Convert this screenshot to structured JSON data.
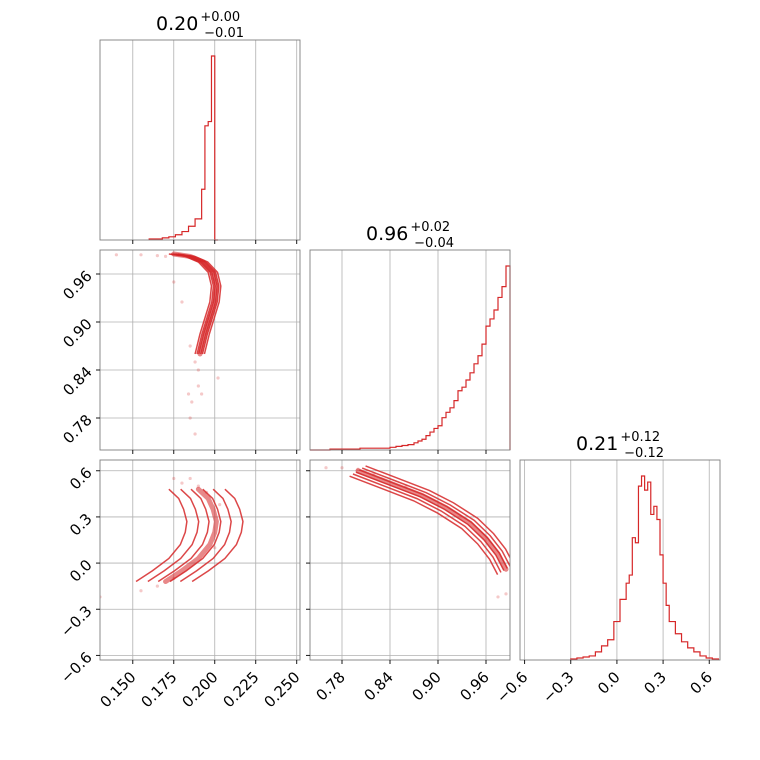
{
  "colors": {
    "accent": "#d62728",
    "grid": "#b0b0b0",
    "frame": "#7f7f7f"
  },
  "chart_data": {
    "type": "corner",
    "grid": true,
    "parameters": [
      {
        "title": {
          "value": "0.20",
          "plus": "+0.00",
          "minus": "−0.01"
        },
        "range": [
          0.13,
          0.252
        ],
        "ticks": [
          {
            "v": 0.15,
            "label": "0.150"
          },
          {
            "v": 0.175,
            "label": "0.175"
          },
          {
            "v": 0.2,
            "label": "0.200"
          },
          {
            "v": 0.225,
            "label": "0.225"
          },
          {
            "v": 0.25,
            "label": "0.250"
          }
        ],
        "histogram": {
          "bin_edges": [
            0.16,
            0.164,
            0.168,
            0.172,
            0.176,
            0.18,
            0.184,
            0.188,
            0.192,
            0.194,
            0.196,
            0.198,
            0.2,
            0.202
          ],
          "counts": [
            1,
            1,
            2,
            3,
            5,
            8,
            13,
            20,
            48,
            108,
            112,
            174,
            0
          ]
        }
      },
      {
        "title": {
          "value": "0.96",
          "plus": "+0.02",
          "minus": "−0.04"
        },
        "range": [
          0.74,
          0.99
        ],
        "ticks": [
          {
            "v": 0.78,
            "label": "0.78"
          },
          {
            "v": 0.84,
            "label": "0.84"
          },
          {
            "v": 0.9,
            "label": "0.90"
          },
          {
            "v": 0.96,
            "label": "0.96"
          }
        ],
        "histogram": {
          "bin_edges": [
            0.74,
            0.7525,
            0.765,
            0.7775,
            0.79,
            0.8025,
            0.815,
            0.8275,
            0.84,
            0.8475,
            0.855,
            0.8625,
            0.87,
            0.875,
            0.88,
            0.885,
            0.89,
            0.895,
            0.9,
            0.905,
            0.91,
            0.915,
            0.92,
            0.925,
            0.93,
            0.935,
            0.94,
            0.945,
            0.95,
            0.955,
            0.96,
            0.965,
            0.97,
            0.975,
            0.98,
            0.985,
            0.99
          ],
          "counts": [
            0,
            0,
            1,
            1,
            1,
            2,
            2,
            2,
            3,
            4,
            5,
            6,
            8,
            10,
            12,
            16,
            20,
            24,
            27,
            36,
            42,
            47,
            55,
            66,
            70,
            78,
            86,
            96,
            105,
            118,
            138,
            146,
            156,
            170,
            182,
            205
          ]
        }
      },
      {
        "title": {
          "value": "0.21",
          "plus": "+0.12",
          "minus": "−0.12"
        },
        "range": [
          -0.63,
          0.67
        ],
        "ticks": [
          {
            "v": -0.6,
            "label": "−0.6"
          },
          {
            "v": -0.3,
            "label": "−0.3"
          },
          {
            "v": 0.0,
            "label": "0.0"
          },
          {
            "v": 0.3,
            "label": "0.3"
          },
          {
            "v": 0.6,
            "label": "0.6"
          }
        ],
        "histogram": {
          "bin_edges": [
            -0.3,
            -0.26,
            -0.22,
            -0.18,
            -0.14,
            -0.1,
            -0.06,
            -0.02,
            0.02,
            0.06,
            0.08,
            0.1,
            0.12,
            0.14,
            0.16,
            0.18,
            0.2,
            0.22,
            0.24,
            0.26,
            0.28,
            0.3,
            0.32,
            0.34,
            0.38,
            0.42,
            0.46,
            0.5,
            0.54,
            0.58,
            0.62,
            0.66
          ],
          "counts": [
            1,
            2,
            3,
            4,
            8,
            14,
            20,
            38,
            60,
            76,
            84,
            121,
            116,
            172,
            182,
            168,
            176,
            144,
            152,
            139,
            104,
            76,
            54,
            38,
            26,
            18,
            12,
            8,
            4,
            2,
            1
          ]
        }
      }
    ],
    "pair_plots": [
      {
        "row": 1,
        "col": 0,
        "ridge": [
          [
            0.175,
            0.985
          ],
          [
            0.185,
            0.982
          ],
          [
            0.193,
            0.975
          ],
          [
            0.199,
            0.962
          ],
          [
            0.201,
            0.945
          ],
          [
            0.2,
            0.925
          ],
          [
            0.197,
            0.905
          ],
          [
            0.194,
            0.885
          ],
          [
            0.191,
            0.86
          ]
        ],
        "thickness": 0.005,
        "scatter": [
          [
            0.165,
            0.983
          ],
          [
            0.155,
            0.984
          ],
          [
            0.14,
            0.984
          ],
          [
            0.17,
            0.982
          ],
          [
            0.178,
            0.984
          ],
          [
            0.175,
            0.95
          ],
          [
            0.18,
            0.925
          ],
          [
            0.185,
            0.87
          ],
          [
            0.188,
            0.85
          ],
          [
            0.19,
            0.84
          ],
          [
            0.19,
            0.82
          ],
          [
            0.186,
            0.8
          ],
          [
            0.185,
            0.78
          ],
          [
            0.188,
            0.76
          ],
          [
            0.192,
            0.81
          ],
          [
            0.202,
            0.83
          ],
          [
            0.184,
            0.81
          ]
        ]
      },
      {
        "row": 2,
        "col": 0,
        "ridge": [
          [
            0.17,
            -0.12
          ],
          [
            0.18,
            -0.05
          ],
          [
            0.19,
            0.03
          ],
          [
            0.197,
            0.12
          ],
          [
            0.2,
            0.2
          ],
          [
            0.201,
            0.27
          ],
          [
            0.199,
            0.35
          ],
          [
            0.196,
            0.42
          ],
          [
            0.19,
            0.48
          ]
        ],
        "thickness": 0.03,
        "scatter": [
          [
            0.155,
            -0.18
          ],
          [
            0.165,
            -0.15
          ],
          [
            0.175,
            -0.1
          ],
          [
            0.185,
            0.55
          ],
          [
            0.19,
            0.5
          ],
          [
            0.18,
            0.52
          ],
          [
            0.195,
            0.46
          ],
          [
            0.2,
            0.1
          ],
          [
            0.203,
            0.38
          ],
          [
            0.13,
            -0.22
          ],
          [
            0.175,
            0.55
          ]
        ]
      },
      {
        "row": 2,
        "col": 1,
        "ridge": [
          [
            0.8,
            0.6
          ],
          [
            0.84,
            0.52
          ],
          [
            0.88,
            0.44
          ],
          [
            0.91,
            0.36
          ],
          [
            0.94,
            0.26
          ],
          [
            0.96,
            0.16
          ],
          [
            0.975,
            0.06
          ],
          [
            0.985,
            -0.04
          ]
        ],
        "thickness": 0.035,
        "scatter": [
          [
            0.78,
            0.62
          ],
          [
            0.76,
            0.62
          ],
          [
            0.8,
            0.61
          ],
          [
            0.82,
            0.58
          ],
          [
            0.86,
            0.5
          ],
          [
            0.985,
            -0.2
          ],
          [
            0.975,
            -0.22
          ]
        ]
      }
    ]
  }
}
